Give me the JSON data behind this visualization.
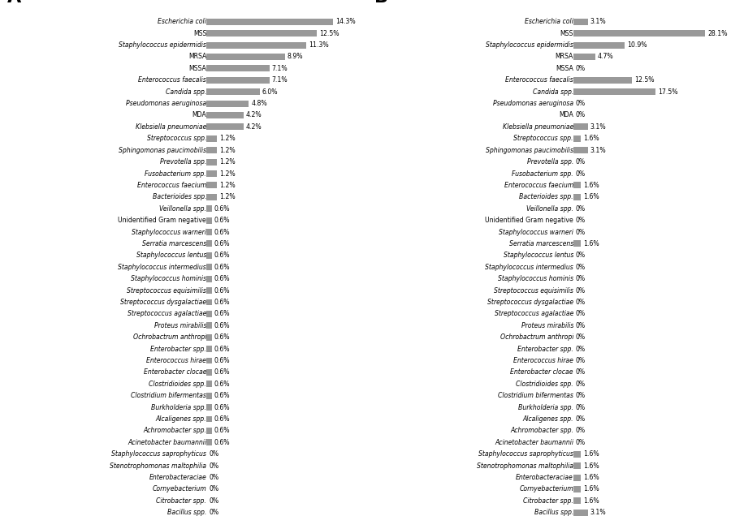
{
  "organisms": [
    "Escherichia coli",
    "MSS",
    "Staphylococcus epidermidis",
    "MRSA",
    "MSSA",
    "Enterococcus faecalis",
    "Candida spp.",
    "Pseudomonas aeruginosa",
    "MDA",
    "Klebsiella pneumoniae",
    "Streptococcus spp.",
    "Sphingomonas paucimobilis",
    "Prevotella spp.",
    "Fusobacterium spp.",
    "Enterococcus faecium",
    "Bacterioides spp.",
    "Veillonella spp.",
    "Unidentified Gram negative",
    "Staphylococcus warneri",
    "Serratia marcescens",
    "Staphylococcus lentus",
    "Staphylococcus intermedius",
    "Staphylococcus hominis",
    "Streptococcus equisimilis",
    "Streptococcus dysgalactiae",
    "Streptococcus agalactiae",
    "Proteus mirabilis",
    "Ochrobactrum anthropi",
    "Enterobacter spp.",
    "Enterococcus hirae",
    "Enterobacter clocae",
    "Clostridioides spp.",
    "Clostridium bifermentas",
    "Burkholderia spp.",
    "Alcaligenes spp.",
    "Achromobacter spp.",
    "Acinetobacter baumannii",
    "Staphylococcus saprophyticus",
    "Stenotrophomonas maltophilia",
    "Enterobacteraciae",
    "Cornyebacterium",
    "Citrobacter spp.",
    "Bacillus spp."
  ],
  "values_A": [
    14.3,
    12.5,
    11.3,
    8.9,
    7.1,
    7.1,
    6.0,
    4.8,
    4.2,
    4.2,
    1.2,
    1.2,
    1.2,
    1.2,
    1.2,
    1.2,
    0.6,
    0.6,
    0.6,
    0.6,
    0.6,
    0.6,
    0.6,
    0.6,
    0.6,
    0.6,
    0.6,
    0.6,
    0.6,
    0.6,
    0.6,
    0.6,
    0.6,
    0.6,
    0.6,
    0.6,
    0.6,
    0.0,
    0.0,
    0.0,
    0.0,
    0.0,
    0.0
  ],
  "values_B": [
    3.1,
    28.1,
    10.9,
    4.7,
    0.0,
    12.5,
    17.5,
    0.0,
    0.0,
    3.1,
    1.6,
    3.1,
    0.0,
    0.0,
    1.6,
    1.6,
    0.0,
    0.0,
    0.0,
    1.6,
    0.0,
    0.0,
    0.0,
    0.0,
    0.0,
    0.0,
    0.0,
    0.0,
    0.0,
    0.0,
    0.0,
    0.0,
    0.0,
    0.0,
    0.0,
    0.0,
    0.0,
    1.6,
    1.6,
    1.6,
    1.6,
    1.6,
    3.1
  ],
  "labels_A": [
    "14.3%",
    "12.5%",
    "11.3%",
    "8.9%",
    "7.1%",
    "7.1%",
    "6.0%",
    "4.8%",
    "4.2%",
    "4.2%",
    "1.2%",
    "1.2%",
    "1.2%",
    "1.2%",
    "1.2%",
    "1.2%",
    "0.6%",
    "0.6%",
    "0.6%",
    "0.6%",
    "0.6%",
    "0.6%",
    "0.6%",
    "0.6%",
    "0.6%",
    "0.6%",
    "0.6%",
    "0.6%",
    "0.6%",
    "0.6%",
    "0.6%",
    "0.6%",
    "0.6%",
    "0.6%",
    "0.6%",
    "0.6%",
    "0.6%",
    "0%",
    "0%",
    "0%",
    "0%",
    "0%",
    "0%"
  ],
  "labels_B": [
    "3.1%",
    "28.1%",
    "10.9%",
    "4.7%",
    "0%",
    "12.5%",
    "17.5%",
    "0%",
    "0%",
    "3.1%",
    "1.6%",
    "3.1%",
    "0%",
    "0%",
    "1.6%",
    "1.6%",
    "0%",
    "0%",
    "0%",
    "1.6%",
    "0%",
    "0%",
    "0%",
    "0%",
    "0%",
    "0%",
    "0%",
    "0%",
    "0%",
    "0%",
    "0%",
    "0%",
    "0%",
    "0%",
    "0%",
    "0%",
    "0%",
    "1.6%",
    "1.6%",
    "1.6%",
    "1.6%",
    "1.6%",
    "3.1%"
  ],
  "bar_color": "#999999",
  "bg_color": "#ffffff",
  "non_italic": [
    "MSS",
    "MRSA",
    "MSSA",
    "MDA",
    "Unidentified Gram negative"
  ],
  "xlim_A": 17.0,
  "xlim_B": 32.0,
  "bar_height": 0.55,
  "fontsize": 5.6,
  "label_fontsize": 5.6,
  "panel_fontsize": 16
}
